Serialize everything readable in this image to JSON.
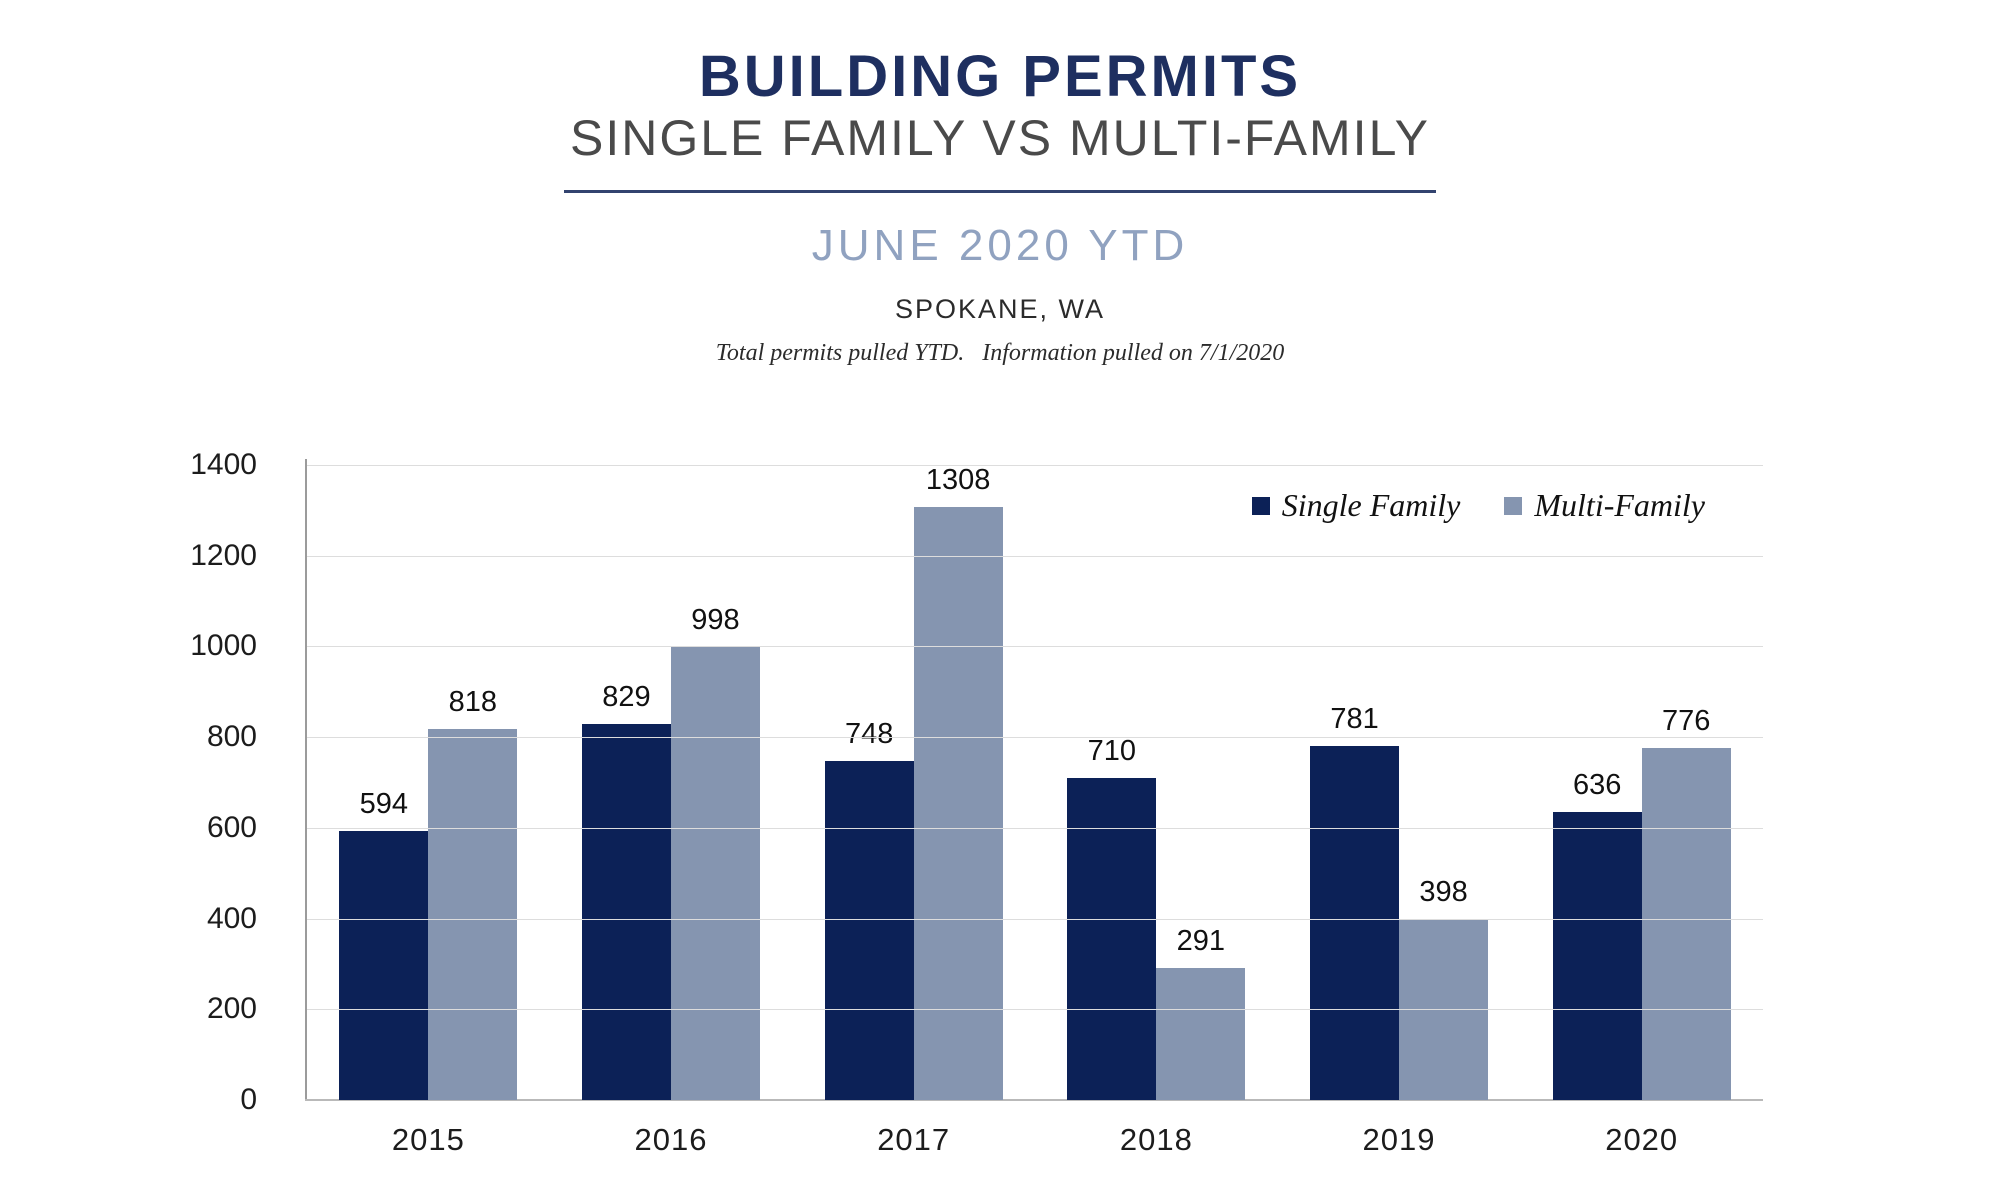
{
  "header": {
    "title": "BUILDING PERMITS",
    "subtitle": "SINGLE FAMILY VS MULTI-FAMILY",
    "period": "JUNE 2020 YTD",
    "location": "SPOKANE, WA",
    "note": "Total permits pulled YTD.   Information pulled on 7/1/2020"
  },
  "colors": {
    "title_navy": "#1e2f60",
    "subtitle_gray": "#4a4a4a",
    "period_blue": "#90a2c0",
    "single_family_bar": "#0c2157",
    "multi_family_bar": "#8595b0",
    "gridline": "#dddddd",
    "axis": "#9b9b9b"
  },
  "chart_data": {
    "type": "bar",
    "title": "BUILDING PERMITS — SINGLE FAMILY VS MULTI-FAMILY, JUNE 2020 YTD, SPOKANE, WA",
    "xlabel": "",
    "ylabel": "",
    "categories": [
      "2015",
      "2016",
      "2017",
      "2018",
      "2019",
      "2020"
    ],
    "series": [
      {
        "name": "Single Family",
        "color": "#0c2157",
        "values": [
          594,
          829,
          748,
          710,
          781,
          636
        ]
      },
      {
        "name": "Multi-Family",
        "color": "#8595b0",
        "values": [
          818,
          998,
          1308,
          291,
          398,
          776
        ]
      }
    ],
    "ylim": [
      0,
      1400
    ],
    "ytick_step": 200,
    "grid": true,
    "legend_position": "top-right",
    "bar_value_labels": true
  }
}
